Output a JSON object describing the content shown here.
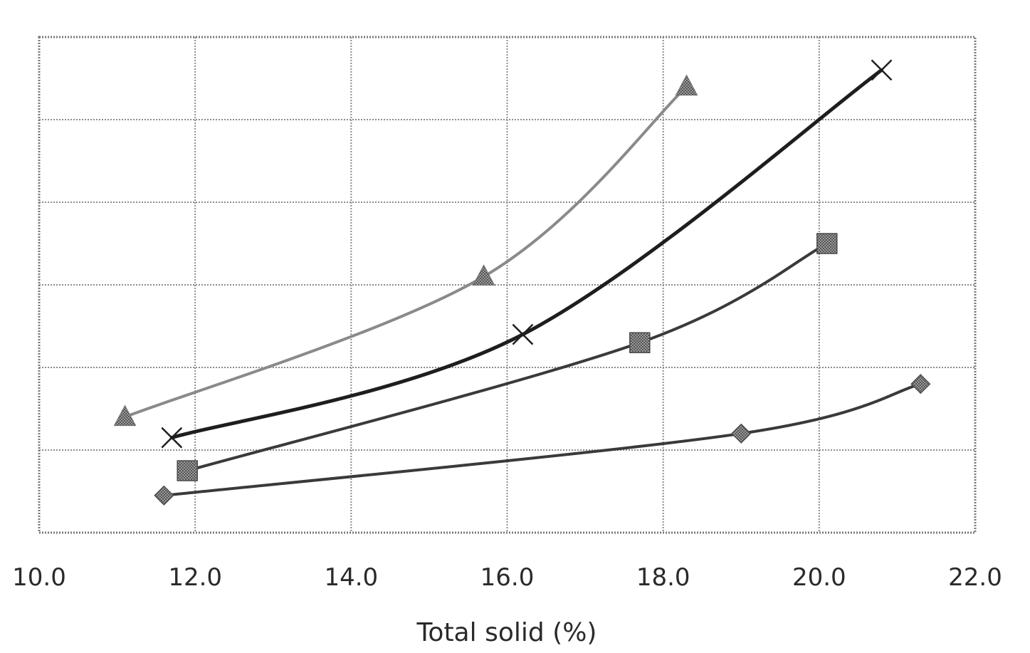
{
  "chart_data": {
    "type": "line",
    "title": "",
    "xlabel": "Total solid (%)",
    "ylabel": "",
    "xlim": [
      10.0,
      22.0
    ],
    "ylim": [
      0,
      6
    ],
    "x_ticks": [
      "10.0",
      "12.0",
      "14.0",
      "16.0",
      "18.0",
      "20.0",
      "22.0"
    ],
    "grid": true,
    "legend": "none",
    "series": [
      {
        "name": "triangle",
        "marker": "triangle",
        "color": "#8a8a8a",
        "x": [
          11.1,
          15.7,
          18.3
        ],
        "y": [
          1.4,
          3.1,
          5.4
        ]
      },
      {
        "name": "cross",
        "marker": "cross",
        "color": "#1e1e1e",
        "x": [
          11.7,
          16.2,
          20.8
        ],
        "y": [
          1.15,
          2.4,
          5.6
        ]
      },
      {
        "name": "square",
        "marker": "square",
        "color": "#3a3a3a",
        "x": [
          11.9,
          17.7,
          20.1
        ],
        "y": [
          0.75,
          2.3,
          3.5
        ]
      },
      {
        "name": "diamond",
        "marker": "diamond",
        "color": "#3a3a3a",
        "x": [
          11.6,
          19.0,
          21.3
        ],
        "y": [
          0.45,
          1.2,
          1.8
        ]
      }
    ]
  }
}
